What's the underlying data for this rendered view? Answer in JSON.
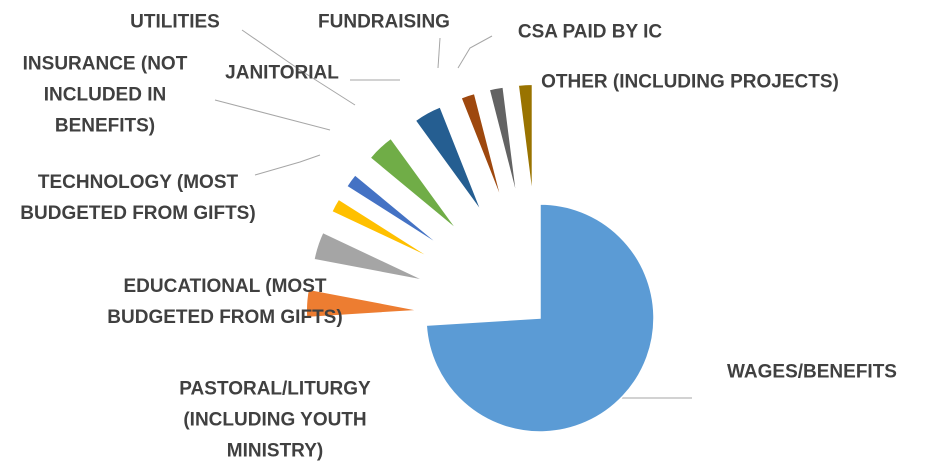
{
  "chart_data": {
    "type": "pie",
    "categories": [
      "WAGES/BENEFITS",
      "PASTORAL/LITURGY (INCLUDING YOUTH MINISTRY)",
      "EDUCATIONAL (MOST BUDGETED FROM GIFTS)",
      "TECHNOLOGY (MOST BUDGETED FROM GIFTS)",
      "INSURANCE (NOT INCLUDED IN BENEFITS)",
      "JANITORIAL",
      "UTILITIES",
      "FUNDRAISING",
      "CSA PAID BY IC",
      "OTHER (INCLUDING PROJECTS)"
    ],
    "values": [
      74,
      4,
      4,
      2,
      2,
      4,
      4,
      2,
      2,
      2
    ],
    "colors": [
      "#5b9bd5",
      "#ed7d31",
      "#a5a5a5",
      "#ffc000",
      "#4472c4",
      "#70ad47",
      "#255e91",
      "#9e480e",
      "#636363",
      "#997300"
    ]
  }
}
